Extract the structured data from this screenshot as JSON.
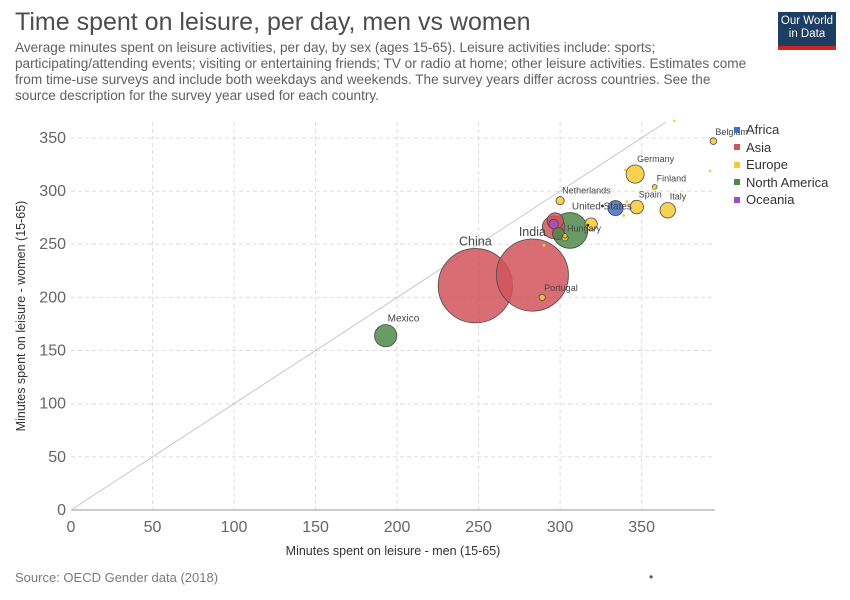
{
  "header": {
    "title": "Time spent on leisure, per day, men vs women",
    "subtitle": "Average minutes spent on leisure activities, per day, by sex (ages 15-65). Leisure activities include: sports; participating/attending events; visiting or entertaining friends; TV or radio at home; other leisure activities. Estimates come from time-use surveys and include both weekdays and weekends. The survey years differ across countries. See the source description for the survey year used for each country.",
    "logo_line1": "Our World",
    "logo_line2": "in Data"
  },
  "footer": {
    "source": "Source: OECD Gender data (2018)",
    "dot": "•"
  },
  "legend": [
    {
      "label": "Africa",
      "color": "#3e6fc4"
    },
    {
      "label": "Asia",
      "color": "#d1545b"
    },
    {
      "label": "Europe",
      "color": "#f5c934"
    },
    {
      "label": "North America",
      "color": "#4d8a4a"
    },
    {
      "label": "Oceania",
      "color": "#a64bc4"
    }
  ],
  "chart_data": {
    "type": "scatter",
    "title": "Time spent on leisure, per day, men vs women",
    "xlabel": "Minutes spent on leisure - men (15-65)",
    "ylabel": "Minutes spent on leisure - women (15-65)",
    "xlim": [
      0,
      395
    ],
    "ylim": [
      0,
      365
    ],
    "xticks": [
      0,
      50,
      100,
      150,
      200,
      250,
      300,
      350
    ],
    "yticks": [
      0,
      50,
      100,
      150,
      200,
      250,
      300,
      350
    ],
    "grid": true,
    "legend_position": "right",
    "colors": {
      "Africa": "#3e6fc4",
      "Asia": "#d1545b",
      "Europe": "#f5c934",
      "North America": "#4d8a4a",
      "Oceania": "#a64bc4",
      "Other": "#1a1a1a"
    },
    "points": [
      {
        "label": "China",
        "x": 248,
        "y": 211,
        "region": "Asia",
        "size": 1380
      },
      {
        "label": "India",
        "x": 283,
        "y": 221,
        "region": "Asia",
        "size": 1300
      },
      {
        "label": "Mexico",
        "x": 193,
        "y": 164,
        "region": "North America",
        "size": 124
      },
      {
        "label": "Portugal",
        "x": 289,
        "y": 200,
        "region": "Europe",
        "size": 10
      },
      {
        "label": "Hungary",
        "x": 303,
        "y": 256,
        "region": "Europe",
        "size": 10
      },
      {
        "label": "United States",
        "x": 306,
        "y": 263,
        "region": "North America",
        "size": 320
      },
      {
        "label": "Netherlands",
        "x": 300,
        "y": 291,
        "region": "Europe",
        "size": 17
      },
      {
        "label": "Germany",
        "x": 346,
        "y": 316,
        "region": "Europe",
        "size": 82
      },
      {
        "label": "Finland",
        "x": 358,
        "y": 304,
        "region": "Europe",
        "size": 5.5
      },
      {
        "label": "Spain",
        "x": 347,
        "y": 285,
        "region": "Europe",
        "size": 46
      },
      {
        "label": "Italy",
        "x": 366,
        "y": 282,
        "region": "Europe",
        "size": 60
      },
      {
        "label": "Belgium",
        "x": 394,
        "y": 347,
        "region": "Europe",
        "size": 11
      },
      {
        "label": "",
        "x": 296,
        "y": 266,
        "region": "Asia",
        "size": 127
      },
      {
        "label": "",
        "x": 297,
        "y": 272,
        "region": "Asia",
        "size": 66
      },
      {
        "label": "",
        "x": 299,
        "y": 260,
        "region": "North America",
        "size": 36
      },
      {
        "label": "",
        "x": 334,
        "y": 284,
        "region": "Africa",
        "size": 57
      },
      {
        "label": "",
        "x": 319,
        "y": 269,
        "region": "Europe",
        "size": 38
      },
      {
        "label": "",
        "x": 296,
        "y": 269,
        "region": "Oceania",
        "size": 23
      },
      {
        "label": "",
        "x": 326,
        "y": 286,
        "region": "Other",
        "size": 2
      },
      {
        "label": "",
        "x": 317,
        "y": 268,
        "region": "Other",
        "size": 2
      },
      {
        "label": "",
        "x": 303,
        "y": 258,
        "region": "Europe",
        "size": 5
      },
      {
        "label": "",
        "x": 290,
        "y": 249,
        "region": "Europe",
        "size": 2
      },
      {
        "label": "",
        "x": 340,
        "y": 320,
        "region": "Europe",
        "size": 2
      },
      {
        "label": "",
        "x": 341,
        "y": 290,
        "region": "Europe",
        "size": 2
      },
      {
        "label": "",
        "x": 339,
        "y": 277,
        "region": "Europe",
        "size": 2
      },
      {
        "label": "",
        "x": 370,
        "y": 366,
        "region": "Europe",
        "size": 2
      },
      {
        "label": "",
        "x": 392,
        "y": 319,
        "region": "Europe",
        "size": 2
      },
      {
        "label": "",
        "x": 357,
        "y": 302,
        "region": "Europe",
        "size": 2
      }
    ]
  }
}
